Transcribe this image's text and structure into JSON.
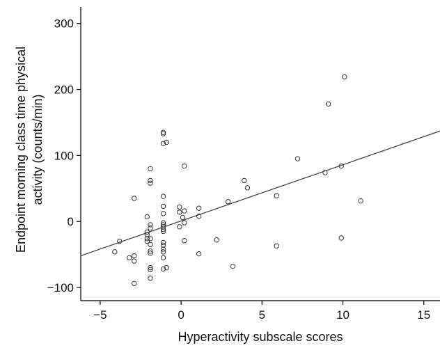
{
  "chart_data": {
    "type": "scatter",
    "title": "",
    "xlabel": "Hyperactivity subscale scores",
    "ylabel_lines": [
      "Endpoint morning class time physical",
      "activity (counts/min)"
    ],
    "xlim": [
      -6.2,
      16
    ],
    "ylim": [
      -120,
      325
    ],
    "xticks": [
      -5,
      0,
      5,
      10,
      15
    ],
    "yticks": [
      -100,
      0,
      100,
      200,
      300
    ],
    "xtick_labels": [
      "−5",
      "0",
      "5",
      "10",
      "15"
    ],
    "ytick_labels": [
      "−100",
      "0",
      "100",
      "200",
      "300"
    ],
    "grid": false,
    "fit_line": {
      "x": [
        -6.2,
        16
      ],
      "y": [
        -52,
        137
      ]
    },
    "points": [
      {
        "x": -4.1,
        "y": -46
      },
      {
        "x": -3.8,
        "y": -30
      },
      {
        "x": -3.2,
        "y": -55
      },
      {
        "x": -2.9,
        "y": -52
      },
      {
        "x": -2.9,
        "y": -60
      },
      {
        "x": -2.9,
        "y": -94
      },
      {
        "x": -2.9,
        "y": 35
      },
      {
        "x": -2.1,
        "y": 7
      },
      {
        "x": -2.1,
        "y": -16
      },
      {
        "x": -2.1,
        "y": -20
      },
      {
        "x": -2.1,
        "y": -26
      },
      {
        "x": -2.1,
        "y": -30
      },
      {
        "x": -1.9,
        "y": 80
      },
      {
        "x": -1.9,
        "y": 62
      },
      {
        "x": -1.9,
        "y": 58
      },
      {
        "x": -1.9,
        "y": -5
      },
      {
        "x": -1.9,
        "y": -10
      },
      {
        "x": -1.9,
        "y": -26
      },
      {
        "x": -1.9,
        "y": -35
      },
      {
        "x": -1.9,
        "y": -45
      },
      {
        "x": -1.9,
        "y": -48
      },
      {
        "x": -1.9,
        "y": -70
      },
      {
        "x": -1.9,
        "y": -73
      },
      {
        "x": -1.9,
        "y": -86
      },
      {
        "x": -1.1,
        "y": 135
      },
      {
        "x": -1.1,
        "y": 133
      },
      {
        "x": -1.1,
        "y": 118
      },
      {
        "x": -0.9,
        "y": 120
      },
      {
        "x": -1.1,
        "y": 38
      },
      {
        "x": -1.1,
        "y": 23
      },
      {
        "x": -1.1,
        "y": 12
      },
      {
        "x": -1.1,
        "y": -2
      },
      {
        "x": -1.1,
        "y": -5
      },
      {
        "x": -1.1,
        "y": -8
      },
      {
        "x": -1.1,
        "y": -12
      },
      {
        "x": -1.1,
        "y": -15
      },
      {
        "x": -1.1,
        "y": -32
      },
      {
        "x": -1.1,
        "y": -36
      },
      {
        "x": -1.1,
        "y": -42
      },
      {
        "x": -1.1,
        "y": -46
      },
      {
        "x": -1.1,
        "y": -55
      },
      {
        "x": -1.1,
        "y": -72
      },
      {
        "x": -0.9,
        "y": -70
      },
      {
        "x": -0.1,
        "y": 22
      },
      {
        "x": -0.1,
        "y": 14
      },
      {
        "x": 0.2,
        "y": 16
      },
      {
        "x": 0.1,
        "y": 6
      },
      {
        "x": 0.2,
        "y": -2
      },
      {
        "x": -0.1,
        "y": -8
      },
      {
        "x": 0.2,
        "y": 84
      },
      {
        "x": 0.2,
        "y": -29
      },
      {
        "x": 1.1,
        "y": 20
      },
      {
        "x": 1.1,
        "y": 8
      },
      {
        "x": 1.1,
        "y": -49
      },
      {
        "x": 2.2,
        "y": -28
      },
      {
        "x": 2.9,
        "y": 30
      },
      {
        "x": 3.2,
        "y": -68
      },
      {
        "x": 3.9,
        "y": 62
      },
      {
        "x": 4.1,
        "y": 51
      },
      {
        "x": 5.9,
        "y": 39
      },
      {
        "x": 5.9,
        "y": -37
      },
      {
        "x": 7.2,
        "y": 95
      },
      {
        "x": 8.9,
        "y": 74
      },
      {
        "x": 9.1,
        "y": 178
      },
      {
        "x": 9.9,
        "y": 84
      },
      {
        "x": 9.9,
        "y": -25
      },
      {
        "x": 10.1,
        "y": 219
      },
      {
        "x": 11.1,
        "y": 31
      }
    ]
  }
}
